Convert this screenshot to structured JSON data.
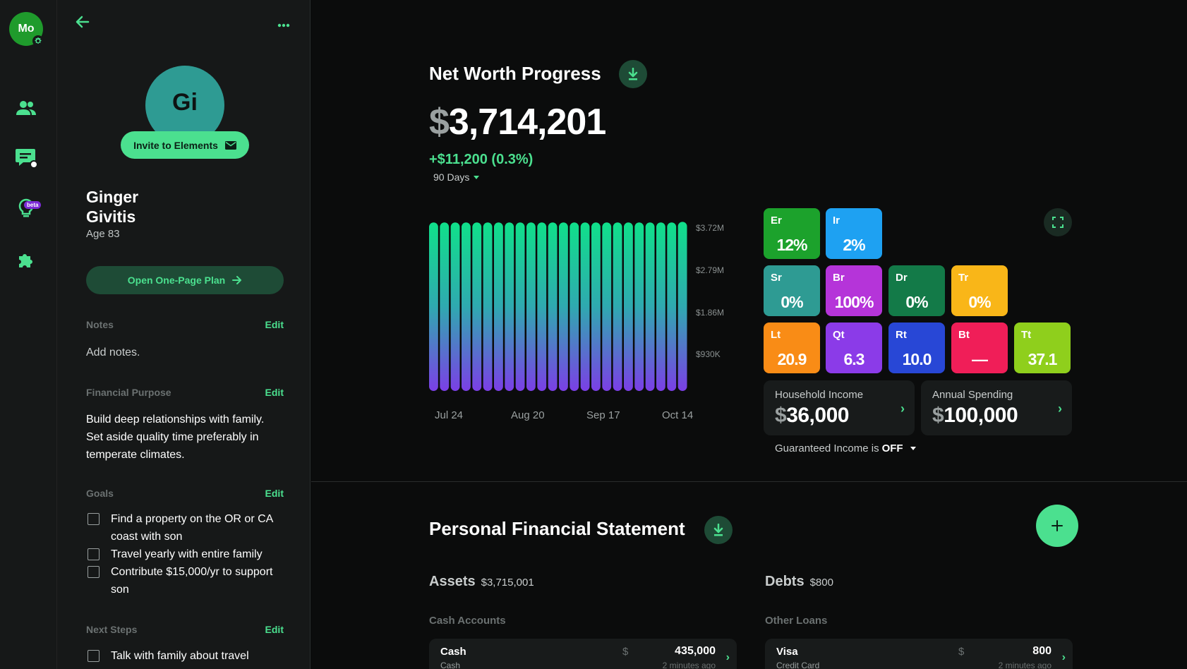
{
  "rail": {
    "user_initials": "Mo",
    "beta_label": "beta"
  },
  "client": {
    "initials": "Gi",
    "invite_label": "Invite to Elements",
    "name": "Ginger Givitis",
    "age": "Age 83",
    "one_page_label": "Open One-Page Plan",
    "notes": {
      "label": "Notes",
      "edit": "Edit",
      "text": "Add notes."
    },
    "purpose": {
      "label": "Financial Purpose",
      "edit": "Edit",
      "text": "Build deep relationships with family. Set aside quality time preferably in temperate climates."
    },
    "goals": {
      "label": "Goals",
      "edit": "Edit",
      "items": [
        "Find a property on the OR or CA coast with son",
        "Travel yearly with entire family",
        "Contribute $15,000/yr to support son"
      ]
    },
    "next_steps": {
      "label": "Next Steps",
      "edit": "Edit",
      "items": [
        "Talk with family about travel"
      ]
    }
  },
  "networth": {
    "title": "Net Worth Progress",
    "currency": "$",
    "value": "3,714,201",
    "change": "+$11,200 (0.3%)",
    "range": "90 Days"
  },
  "chart_data": {
    "type": "bar",
    "title": "",
    "xlabel": "",
    "ylabel": "",
    "x_ticks": [
      "Jul 24",
      "Aug 20",
      "Sep 17",
      "Oct 14"
    ],
    "y_ticks": [
      "$3.72M",
      "$2.79M",
      "$1.86M",
      "$930K"
    ],
    "ylim": [
      0,
      3720000
    ],
    "values": [
      3700000,
      3700000,
      3700000,
      3700000,
      3700000,
      3700000,
      3700000,
      3700000,
      3700000,
      3700000,
      3700000,
      3700000,
      3700000,
      3700000,
      3700000,
      3700000,
      3700000,
      3700000,
      3700000,
      3700000,
      3700000,
      3700000,
      3700000,
      3714201
    ],
    "colors": {
      "top": "#10e08a",
      "bottom": "#7b3fe6"
    }
  },
  "tiles": [
    {
      "label": "Er",
      "value": "12%",
      "color": "#1ca22c"
    },
    {
      "label": "Ir",
      "value": "2%",
      "color": "#1ea1f2"
    },
    {
      "label": "Sr",
      "value": "0%",
      "color": "#2e9b93"
    },
    {
      "label": "Br",
      "value": "100%",
      "color": "#b534d9"
    },
    {
      "label": "Dr",
      "value": "0%",
      "color": "#137a48"
    },
    {
      "label": "Tr",
      "value": "0%",
      "color": "#f9b618"
    },
    {
      "label": "Lt",
      "value": "20.9",
      "color": "#f98c16"
    },
    {
      "label": "Qt",
      "value": "6.3",
      "color": "#8b3be8"
    },
    {
      "label": "Rt",
      "value": "10.0",
      "color": "#2847d6"
    },
    {
      "label": "Bt",
      "value": "—",
      "color": "#f01e58"
    },
    {
      "label": "Tt",
      "value": "37.1",
      "color": "#8fcf1c"
    }
  ],
  "household_income": {
    "label": "Household Income",
    "currency": "$",
    "value": "36,000"
  },
  "annual_spending": {
    "label": "Annual Spending",
    "currency": "$",
    "value": "100,000"
  },
  "guaranteed": {
    "prefix": "Guaranteed Income is",
    "state": "OFF"
  },
  "pfs": {
    "title": "Personal Financial Statement",
    "assets": {
      "label": "Assets",
      "total": "$3,715,001"
    },
    "debts": {
      "label": "Debts",
      "total": "$800"
    },
    "cash_accounts": {
      "label": "Cash Accounts",
      "account": {
        "name": "Cash",
        "type": "Cash",
        "currency": "$",
        "value": "435,000",
        "updated": "2 minutes ago"
      }
    },
    "other_loans": {
      "label": "Other Loans",
      "account": {
        "name": "Visa",
        "type": "Credit Card",
        "currency": "$",
        "value": "800",
        "updated": "2 minutes ago"
      }
    }
  }
}
